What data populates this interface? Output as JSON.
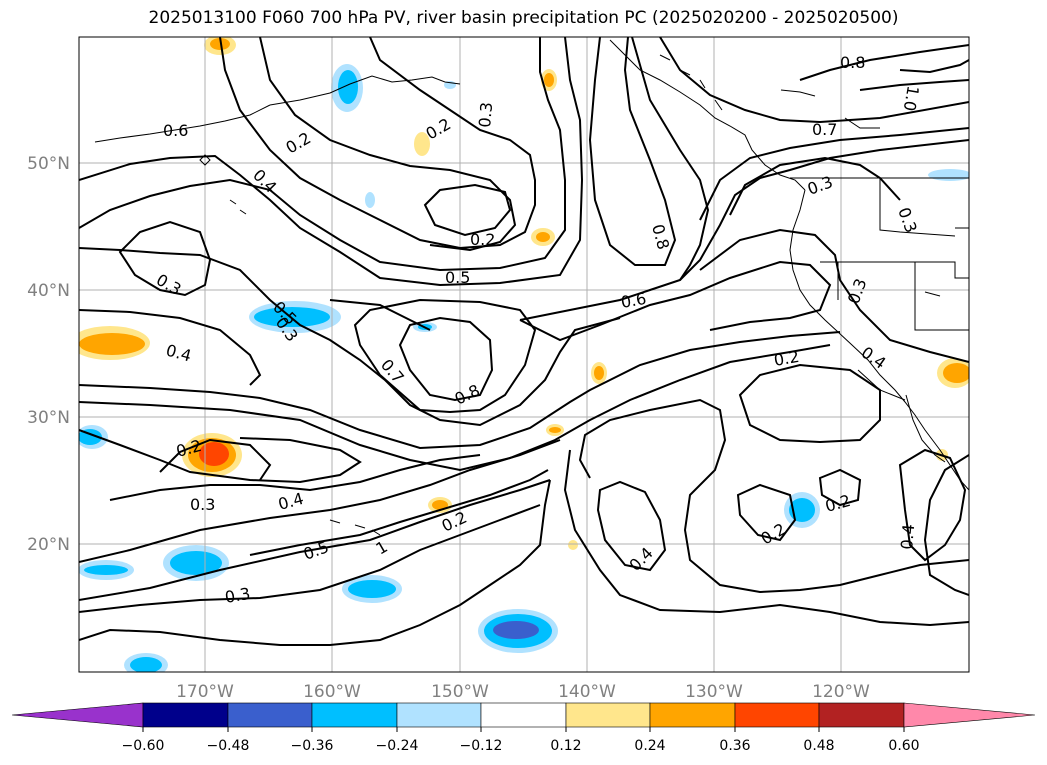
{
  "title": "2025013100 F060 700 hPa PV, river basin precipitation PC (2025020200 - 2025020500)",
  "latitude_labels": [
    "50°N",
    "40°N",
    "30°N",
    "20°N"
  ],
  "longitude_labels": [
    "170°W",
    "160°W",
    "150°W",
    "140°W",
    "130°W",
    "120°W"
  ],
  "colorbar": {
    "tick_labels": [
      "−0.60",
      "−0.48",
      "−0.36",
      "−0.24",
      "−0.12",
      "0.12",
      "0.24",
      "0.36",
      "0.48",
      "0.60"
    ],
    "colors": [
      "#9932cc",
      "#00008b",
      "#3a5fcd",
      "#00bfff",
      "#b0e2ff",
      "#ffffff",
      "#ffe68c",
      "#ffa500",
      "#ff4500",
      "#b22222",
      "#ff88aa"
    ]
  },
  "contour_labels": [
    "0.6",
    "0.2",
    "0.2",
    "0.3",
    "0.8",
    "1.0",
    "0.7",
    "0.4",
    "0.2",
    "0.3",
    "0.8",
    "0.3",
    "0.3",
    "0.5",
    "0.6",
    "0.3",
    "0.5",
    "0.4",
    "0.7",
    "0.8",
    "0.3",
    "0.4",
    "0.2",
    "0.2",
    "0.3",
    "0.4",
    "0.2",
    "0.5",
    "1",
    "0.3",
    "0.4",
    "0.2",
    "0.2",
    "0.4"
  ]
}
